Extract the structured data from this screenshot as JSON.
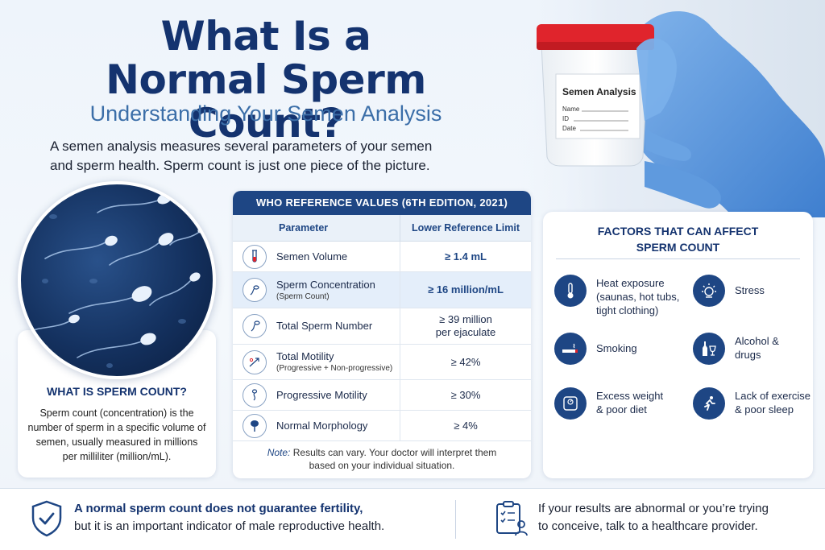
{
  "header": {
    "title_line1": "What Is a",
    "title_line2": "Normal Sperm Count?",
    "subtitle": "Understanding Your Semen Analysis",
    "intro_line1": "A semen analysis measures several parameters of your semen",
    "intro_line2": "and sperm health. Sperm count is just one piece of the picture."
  },
  "cup_label": {
    "title": "Semen Analysis",
    "fields": [
      "Name",
      "ID",
      "Date"
    ]
  },
  "what_is": {
    "heading": "WHAT IS SPERM COUNT?",
    "body": "Sperm count (concentration) is the number of sperm in a specific volume of semen, usually measured in millions per milliliter (million/mL)."
  },
  "table": {
    "title": "WHO REFERENCE VALUES (6TH EDITION, 2021)",
    "col1": "Parameter",
    "col2": "Lower Reference Limit",
    "rows": [
      {
        "label": "Semen Volume",
        "sub": "",
        "value": "≥ 1.4 mL",
        "value2": "",
        "icon": "test-tube-icon"
      },
      {
        "label": "Sperm Concentration",
        "sub": "(Sperm Count)",
        "value": "≥ 16 million/mL",
        "value2": "",
        "icon": "sperm-cells-icon"
      },
      {
        "label": "Total Sperm Number",
        "sub": "",
        "value": "≥ 39 million",
        "value2": "per ejaculate",
        "icon": "sperm-icon"
      },
      {
        "label": "Total Motility",
        "sub": "(Progressive + Non-progressive)",
        "value": "≥ 42%",
        "value2": "",
        "icon": "motility-icon"
      },
      {
        "label": "Progressive Motility",
        "sub": "",
        "value": "≥ 30%",
        "value2": "",
        "icon": "progressive-icon"
      },
      {
        "label": "Normal Morphology",
        "sub": "",
        "value": "≥ 4%",
        "value2": "",
        "icon": "morphology-icon"
      }
    ],
    "note_prefix": "Note:",
    "note_line1": " Results can vary. Your doctor will interpret them",
    "note_line2": "based on your individual situation."
  },
  "factors": {
    "heading_line1": "FACTORS THAT CAN AFFECT",
    "heading_line2": "SPERM COUNT",
    "items": [
      {
        "line1": "Heat exposure",
        "line2": "(saunas, hot tubs,",
        "line3": "tight clothing)",
        "icon": "thermometer-icon"
      },
      {
        "line1": "Stress",
        "line2": "",
        "line3": "",
        "icon": "stress-icon"
      },
      {
        "line1": "Smoking",
        "line2": "",
        "line3": "",
        "icon": "cigarette-icon"
      },
      {
        "line1": "Alcohol &",
        "line2": "drugs",
        "line3": "",
        "icon": "alcohol-icon"
      },
      {
        "line1": "Excess weight",
        "line2": "& poor diet",
        "line3": "",
        "icon": "scale-icon"
      },
      {
        "line1": "Lack of exercise",
        "line2": "& poor sleep",
        "line3": "",
        "icon": "running-icon"
      }
    ]
  },
  "footer": {
    "left_bold": "A normal sperm count does not guarantee fertility,",
    "left_rest": "but it is an important indicator of male reproductive health.",
    "right_line1": "If your results are abnormal or you’re trying",
    "right_line2": "to conceive, talk to a healthcare provider."
  }
}
